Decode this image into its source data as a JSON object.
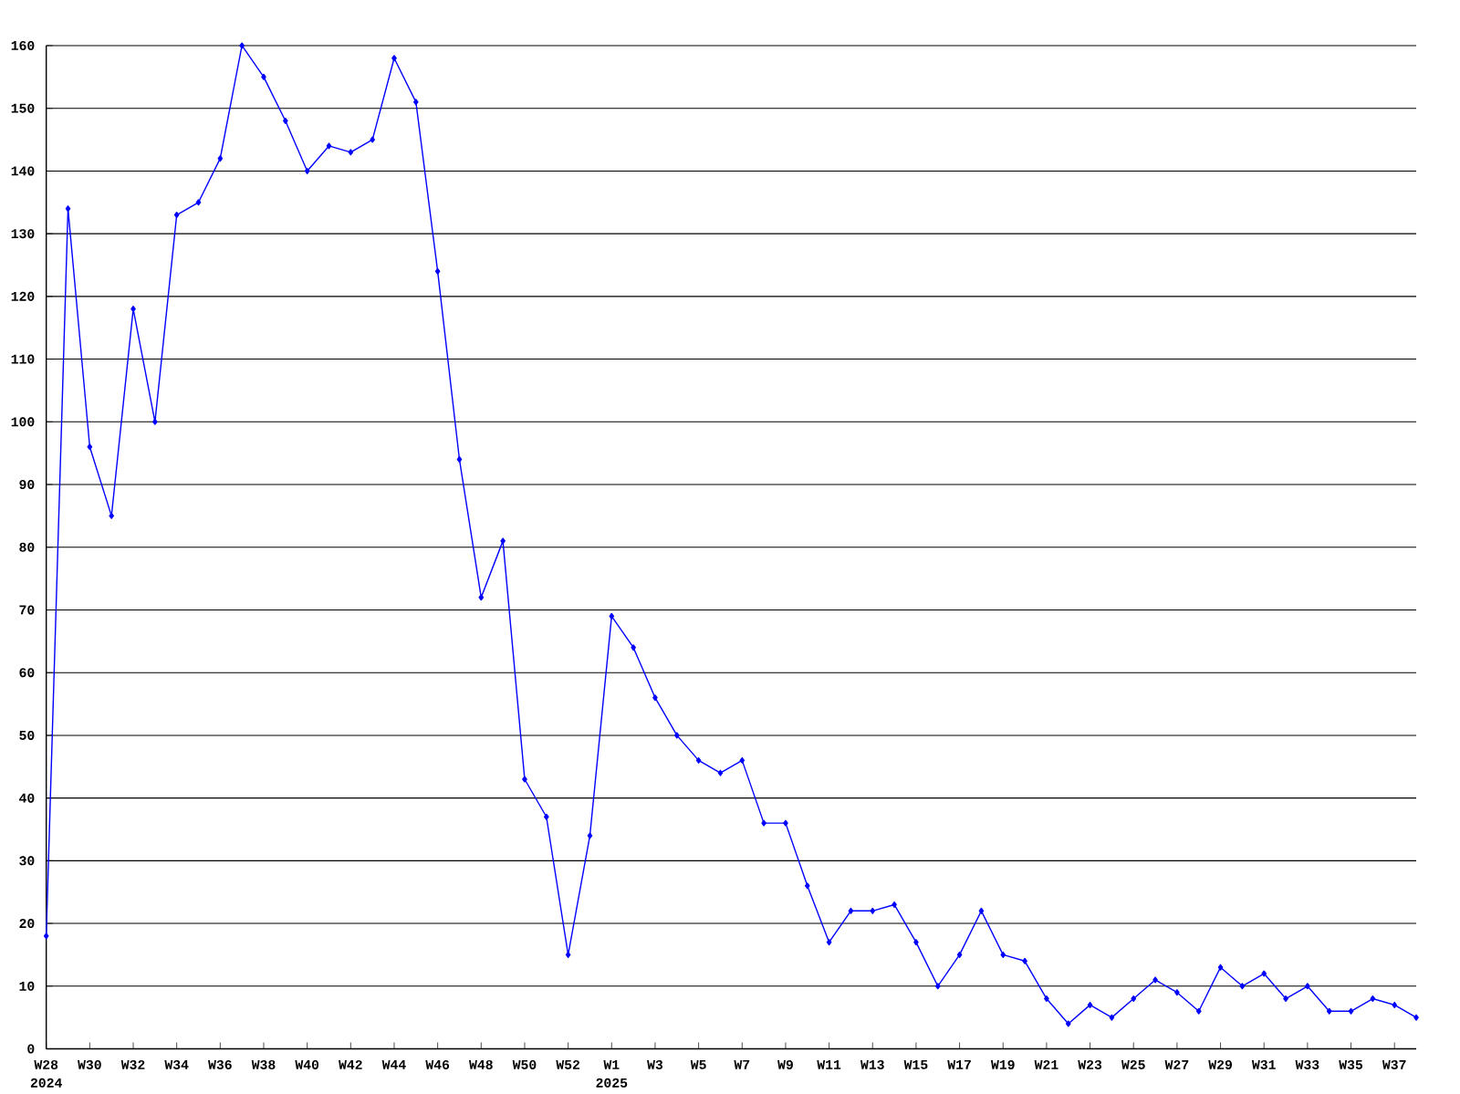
{
  "chart_data": {
    "type": "line",
    "categories": [
      "W28",
      null,
      "W30",
      null,
      "W32",
      null,
      "W34",
      null,
      "W36",
      null,
      "W38",
      null,
      "W40",
      null,
      "W42",
      null,
      "W44",
      null,
      "W46",
      null,
      "W48",
      null,
      "W50",
      null,
      "W52",
      null,
      "W1",
      null,
      "W3",
      null,
      "W5",
      null,
      "W7",
      null,
      "W9",
      null,
      "W11",
      null,
      "W13",
      null,
      "W15",
      null,
      "W17",
      null,
      "W19",
      null,
      "W21",
      null,
      "W23",
      null,
      "W25",
      null,
      "W27",
      null,
      "W29",
      null,
      "W31",
      null,
      "W33",
      null,
      "W35",
      null,
      "W37",
      null
    ],
    "values": [
      18,
      134,
      96,
      85,
      118,
      100,
      133,
      135,
      142,
      160,
      155,
      148,
      140,
      144,
      143,
      145,
      158,
      151,
      124,
      94,
      72,
      81,
      43,
      37,
      15,
      34,
      69,
      64,
      56,
      50,
      46,
      44,
      46,
      36,
      36,
      26,
      17,
      22,
      22,
      23,
      17,
      10,
      15,
      22,
      15,
      14,
      8,
      4,
      7,
      5,
      8,
      11,
      9,
      6,
      13,
      10,
      12,
      8,
      10,
      6,
      6,
      8,
      7,
      5
    ],
    "color": "#0000ff",
    "marker": "diamond",
    "line_style": "solid",
    "grid": "y",
    "ylim": [
      0,
      160
    ],
    "yticks": [
      0,
      10,
      20,
      30,
      40,
      50,
      60,
      70,
      80,
      90,
      100,
      110,
      120,
      130,
      140,
      150,
      160
    ],
    "annotations": [
      "2024",
      "2025"
    ]
  }
}
